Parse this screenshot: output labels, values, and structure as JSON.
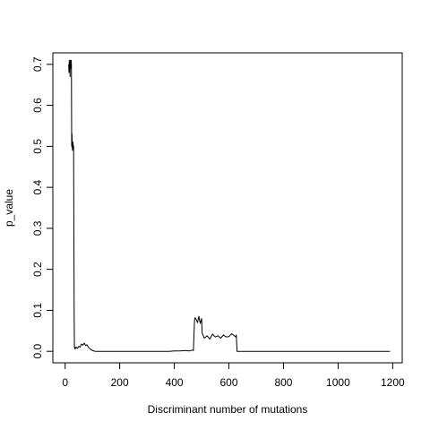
{
  "chart_data": {
    "type": "line",
    "title": "",
    "xlabel": "Discriminant number of mutations",
    "ylabel": "p_value",
    "xlim": [
      -45,
      1235
    ],
    "ylim": [
      -0.028,
      0.728
    ],
    "xticks": [
      0,
      200,
      400,
      600,
      800,
      1000,
      1200
    ],
    "yticks": [
      0.0,
      0.1,
      0.2,
      0.3,
      0.4,
      0.5,
      0.6,
      0.7
    ],
    "grid": false,
    "legend": "none",
    "line_color": "#000000",
    "series": [
      {
        "x": [
          13,
          14,
          15,
          16,
          17,
          18,
          19,
          20,
          21,
          22,
          23,
          24,
          25,
          26,
          27,
          28,
          29,
          30,
          31,
          32,
          33,
          34,
          35,
          36,
          37,
          38,
          39,
          40,
          42,
          45,
          50,
          55,
          60,
          65,
          70,
          75,
          80,
          85,
          90,
          95,
          100,
          105,
          110,
          150,
          200,
          250,
          300,
          350,
          380,
          400,
          420,
          440,
          455,
          465,
          470,
          472,
          474,
          476,
          480,
          485,
          490,
          495,
          500,
          502,
          505,
          510,
          520,
          530,
          540,
          550,
          560,
          570,
          580,
          590,
          600,
          610,
          620,
          625,
          627,
          630,
          700,
          800,
          900,
          1000,
          1100,
          1190
        ],
        "y": [
          0.7,
          0.68,
          0.71,
          0.69,
          0.7,
          0.67,
          0.71,
          0.7,
          0.69,
          0.71,
          0.7,
          0.5,
          0.53,
          0.5,
          0.49,
          0.5,
          0.51,
          0.495,
          0.5,
          0.3,
          0.1,
          0.01,
          0.008,
          0.006,
          0.01,
          0.007,
          0.009,
          0.008,
          0.01,
          0.007,
          0.012,
          0.01,
          0.018,
          0.015,
          0.02,
          0.014,
          0.016,
          0.01,
          0.007,
          0.004,
          0.002,
          0.001,
          0.0,
          0.0,
          0.0,
          0.0,
          0.0,
          0.0,
          0.0,
          0.001,
          0.001,
          0.002,
          0.001,
          0.003,
          0.002,
          0.04,
          0.075,
          0.082,
          0.078,
          0.07,
          0.085,
          0.068,
          0.08,
          0.045,
          0.04,
          0.032,
          0.038,
          0.03,
          0.042,
          0.035,
          0.038,
          0.032,
          0.04,
          0.035,
          0.036,
          0.043,
          0.038,
          0.035,
          0.04,
          0.0,
          0.0,
          0.0,
          0.0,
          0.0,
          0.0,
          0.0
        ]
      }
    ]
  }
}
